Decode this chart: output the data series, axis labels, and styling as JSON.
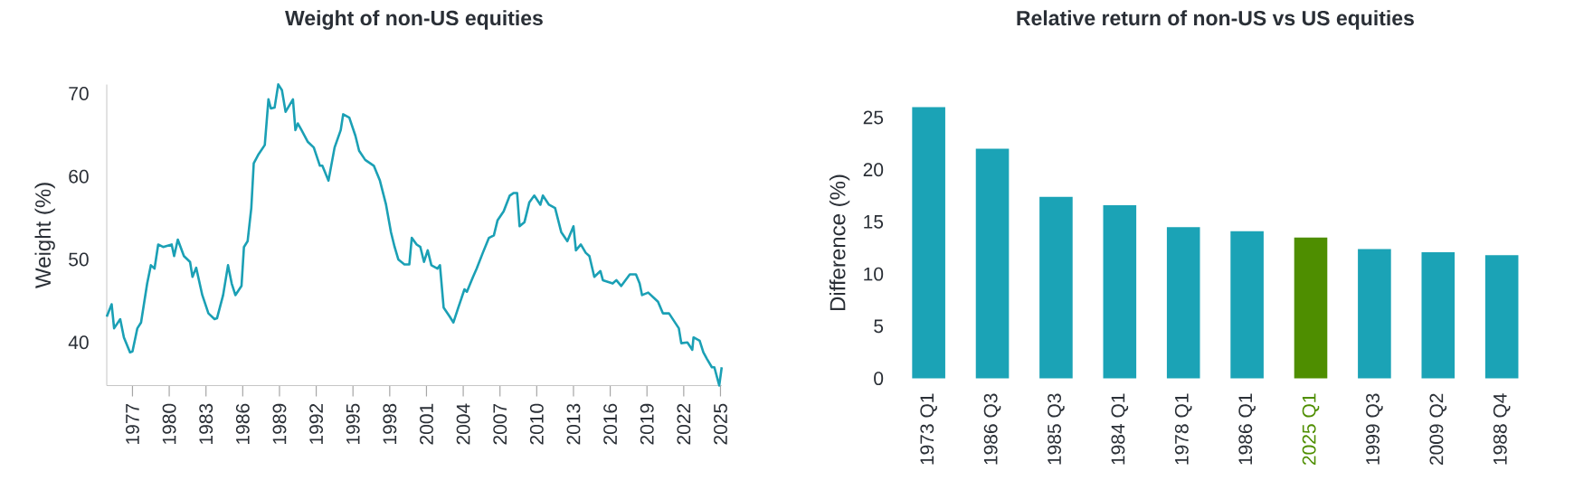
{
  "chart_data": [
    {
      "type": "line",
      "title": "Weight of non-US equities",
      "ylabel": "Weight (%)",
      "color": "#1ba0b5",
      "x": [
        1974.9,
        1975.3,
        1975.5,
        1976.0,
        1976.3,
        1976.8,
        1977.0,
        1977.4,
        1977.7,
        1978.2,
        1978.5,
        1978.8,
        1979.1,
        1979.5,
        1980.2,
        1980.4,
        1980.7,
        1981.2,
        1981.7,
        1981.9,
        1982.2,
        1982.7,
        1983.2,
        1983.7,
        1983.9,
        1984.4,
        1984.8,
        1985.1,
        1985.4,
        1985.9,
        1986.1,
        1986.4,
        1986.7,
        1986.9,
        1987.3,
        1987.8,
        1988.1,
        1988.3,
        1988.6,
        1988.9,
        1989.2,
        1989.5,
        1990.1,
        1990.3,
        1990.5,
        1990.8,
        1991.3,
        1991.8,
        1992.3,
        1992.5,
        1993.0,
        1993.5,
        1994.0,
        1994.2,
        1994.7,
        1995.2,
        1995.5,
        1996.0,
        1996.7,
        1997.2,
        1997.7,
        1998.1,
        1998.4,
        1998.7,
        1999.2,
        1999.6,
        1999.8,
        2000.2,
        2000.5,
        2000.8,
        2001.1,
        2001.4,
        2001.9,
        2002.1,
        2002.4,
        2002.9,
        2003.2,
        2003.6,
        2004.1,
        2004.3,
        2004.8,
        2005.1,
        2005.6,
        2006.1,
        2006.5,
        2006.8,
        2007.3,
        2007.8,
        2008.1,
        2008.4,
        2008.6,
        2009.0,
        2009.4,
        2009.8,
        2010.3,
        2010.5,
        2011.0,
        2011.5,
        2012.0,
        2012.5,
        2013.0,
        2013.2,
        2013.6,
        2014.0,
        2014.3,
        2014.7,
        2015.2,
        2015.4,
        2016.2,
        2016.5,
        2016.9,
        2017.6,
        2018.1,
        2018.4,
        2018.6,
        2019.1,
        2019.9,
        2020.3,
        2020.8,
        2021.6,
        2021.8,
        2022.3,
        2022.7,
        2022.8,
        2023.3,
        2023.6,
        2023.9,
        2024.3,
        2024.5,
        2024.9,
        2025.1
      ],
      "values": [
        43.1,
        44.6,
        41.7,
        42.8,
        40.6,
        38.8,
        38.9,
        41.7,
        42.4,
        47.1,
        49.3,
        48.9,
        51.8,
        51.5,
        51.8,
        50.4,
        52.4,
        50.4,
        49.7,
        47.9,
        49.0,
        45.7,
        43.5,
        42.8,
        42.9,
        45.7,
        49.3,
        47.1,
        45.7,
        46.8,
        51.5,
        52.2,
        56.2,
        61.6,
        62.7,
        63.8,
        69.3,
        68.2,
        68.3,
        71.1,
        70.4,
        67.8,
        69.3,
        65.6,
        66.4,
        65.6,
        64.2,
        63.5,
        61.3,
        61.3,
        59.5,
        63.5,
        65.6,
        67.5,
        67.1,
        64.9,
        63.1,
        62.0,
        61.3,
        59.5,
        56.6,
        53.3,
        51.5,
        50.0,
        49.4,
        49.4,
        52.6,
        51.8,
        51.5,
        49.7,
        51.1,
        49.3,
        48.9,
        49.3,
        44.2,
        43.1,
        42.4,
        44.2,
        46.4,
        46.1,
        47.9,
        48.9,
        50.8,
        52.6,
        52.9,
        54.7,
        55.8,
        57.7,
        58.0,
        58.0,
        54.0,
        54.5,
        56.9,
        57.7,
        56.6,
        57.7,
        56.6,
        56.2,
        53.3,
        52.2,
        54.0,
        51.1,
        51.8,
        50.8,
        50.4,
        47.9,
        48.6,
        47.5,
        47.1,
        47.5,
        46.8,
        48.2,
        48.2,
        47.1,
        45.7,
        46.0,
        44.9,
        43.5,
        43.5,
        41.7,
        39.9,
        40.0,
        39.1,
        40.6,
        40.2,
        38.8,
        38.0,
        37.0,
        37.0,
        34.8,
        37.0
      ],
      "xlim": [
        1974.9,
        2025.1
      ],
      "ylim": [
        34.8,
        71.1
      ],
      "xticks": [
        1977,
        1980,
        1983,
        1986,
        1989,
        1992,
        1995,
        1998,
        2001,
        2004,
        2007,
        2010,
        2013,
        2016,
        2019,
        2022,
        2025
      ],
      "yticks": [
        40,
        50,
        60,
        70
      ]
    },
    {
      "type": "bar",
      "title": "Relative return of non-US vs US equities",
      "ylabel": "Difference (%)",
      "color": "#1ba3b6",
      "categories": [
        "1973 Q1",
        "1986 Q3",
        "1985 Q3",
        "1984 Q1",
        "1978 Q1",
        "1986 Q1",
        "2025 Q1",
        "1999 Q3",
        "2009 Q2",
        "1988 Q4"
      ],
      "values": [
        26.0,
        22.0,
        17.4,
        16.6,
        14.5,
        14.1,
        13.5,
        12.4,
        12.1,
        11.8
      ],
      "colors": [
        "#1ba3b6",
        "#1ba3b6",
        "#1ba3b6",
        "#1ba3b6",
        "#1ba3b6",
        "#1ba3b6",
        "#4e8e00",
        "#1ba3b6",
        "#1ba3b6",
        "#1ba3b6"
      ],
      "ylim": [
        0,
        26
      ],
      "yticks": [
        0,
        5,
        10,
        15,
        20,
        25
      ]
    }
  ]
}
